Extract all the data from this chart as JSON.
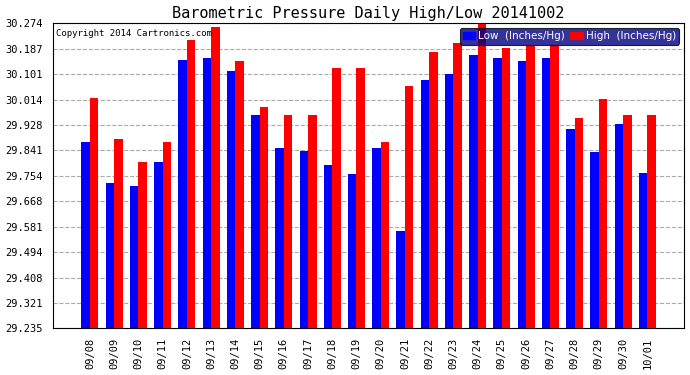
{
  "title": "Barometric Pressure Daily High/Low 20141002",
  "copyright": "Copyright 2014 Cartronics.com",
  "legend_low": "Low  (Inches/Hg)",
  "legend_high": "High  (Inches/Hg)",
  "dates": [
    "09/08",
    "09/09",
    "09/10",
    "09/11",
    "09/12",
    "09/13",
    "09/14",
    "09/15",
    "09/16",
    "09/17",
    "09/18",
    "09/19",
    "09/20",
    "09/21",
    "09/22",
    "09/23",
    "09/24",
    "09/25",
    "09/26",
    "09/27",
    "09/28",
    "09/29",
    "09/30",
    "10/01"
  ],
  "low_values": [
    29.87,
    29.73,
    29.72,
    29.8,
    30.15,
    30.155,
    30.11,
    29.96,
    29.85,
    29.84,
    29.79,
    29.76,
    29.85,
    29.565,
    30.08,
    30.1,
    30.165,
    30.155,
    30.145,
    30.155,
    29.915,
    29.835,
    29.93,
    29.765
  ],
  "high_values": [
    30.02,
    29.88,
    29.8,
    29.87,
    30.215,
    30.26,
    30.145,
    29.99,
    29.96,
    29.96,
    30.12,
    30.12,
    29.87,
    30.06,
    30.175,
    30.205,
    30.27,
    30.19,
    30.2,
    30.2,
    29.95,
    30.015,
    29.96,
    29.96
  ],
  "low_color": "#0000FF",
  "high_color": "#FF0000",
  "background_color": "#FFFFFF",
  "grid_color": "#AAAAAA",
  "ymin": 29.235,
  "ymax": 30.274,
  "yticks": [
    29.235,
    29.321,
    29.408,
    29.494,
    29.581,
    29.668,
    29.754,
    29.841,
    29.928,
    30.014,
    30.101,
    30.187,
    30.274
  ],
  "title_fontsize": 11,
  "tick_fontsize": 7.5,
  "legend_fontsize": 7.5
}
